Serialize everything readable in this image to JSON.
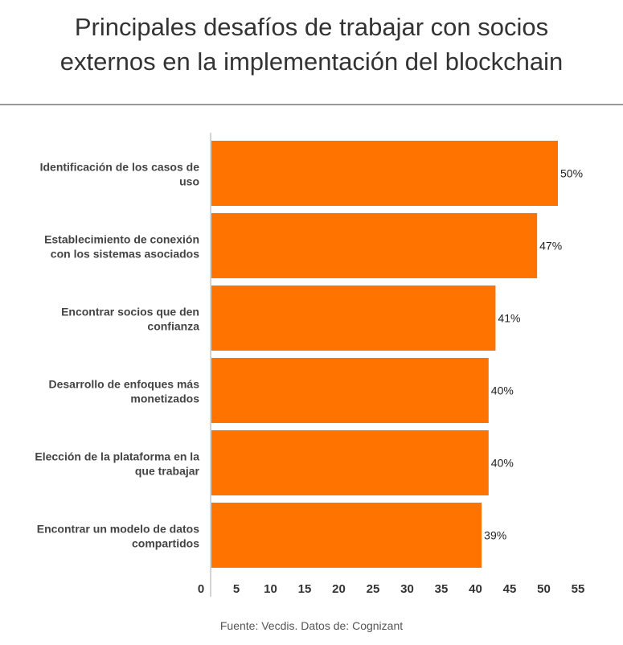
{
  "chart_data": {
    "type": "bar",
    "orientation": "horizontal",
    "title": "Principales desafíos de trabajar con socios externos en la implementación del blockchain",
    "title_lines": [
      "Principales desafíos de trabajar con socios",
      "externos en la implementación del blockchain"
    ],
    "categories": [
      [
        "Identificación de los casos de",
        "uso"
      ],
      [
        "Establecimiento de conexión",
        "con los sistemas asociados"
      ],
      [
        "Encontrar socios que den",
        "confianza"
      ],
      [
        "Desarrollo de enfoques más",
        "monetizados"
      ],
      [
        "Elección de la plataforma en la",
        "que trabajar"
      ],
      [
        "Encontrar un modelo de datos",
        "compartidos"
      ]
    ],
    "values": [
      50,
      47,
      41,
      40,
      40,
      39
    ],
    "data_labels": [
      "50%",
      "47%",
      "41%",
      "40%",
      "40%",
      "39%"
    ],
    "xticks": [
      "0",
      "5",
      "10",
      "15",
      "20",
      "25",
      "30",
      "35",
      "40",
      "45",
      "50",
      "55"
    ],
    "xlim": [
      0,
      55
    ],
    "grid": false,
    "bar_color": "#FF7300",
    "source": "Fuente: Vecdis. Datos de: Cognizant"
  }
}
